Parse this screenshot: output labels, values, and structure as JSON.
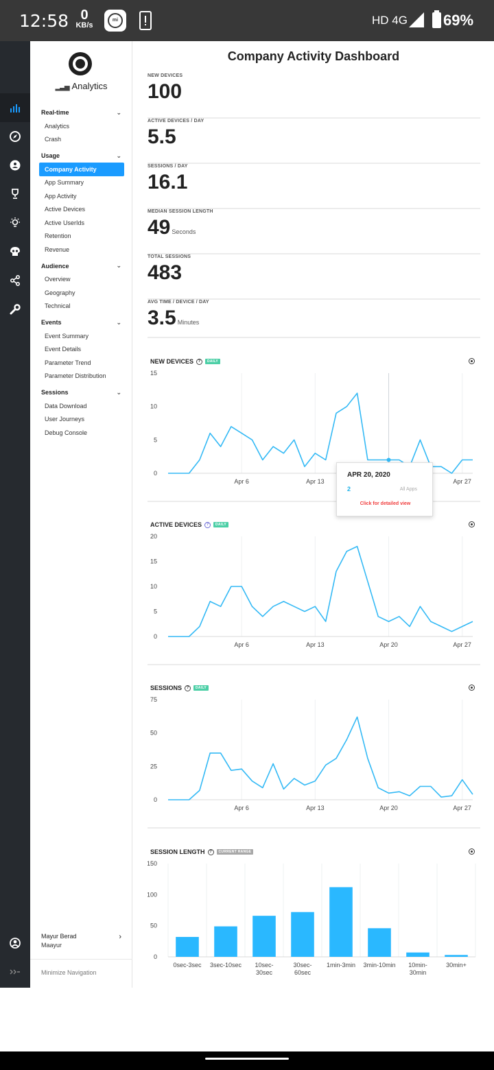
{
  "status_bar": {
    "time": "12:58",
    "net_speed_value": "0",
    "net_speed_unit": "KB/s",
    "mi_label": "mi",
    "network": "HD 4G",
    "battery": "69%"
  },
  "rail_icons": [
    "bar-chart-icon",
    "compass-icon",
    "group-icon",
    "trophy-icon",
    "bulb-icon",
    "skull-icon",
    "share-icon",
    "wrench-icon"
  ],
  "sidebar": {
    "brand": "Analytics",
    "sections": [
      {
        "title": "Real-time",
        "items": [
          {
            "label": "Analytics"
          },
          {
            "label": "Crash"
          }
        ]
      },
      {
        "title": "Usage",
        "items": [
          {
            "label": "Company Activity",
            "active": true
          },
          {
            "label": "App Summary"
          },
          {
            "label": "App Activity"
          },
          {
            "label": "Active Devices"
          },
          {
            "label": "Active UserIds"
          },
          {
            "label": "Retention"
          },
          {
            "label": "Revenue"
          }
        ]
      },
      {
        "title": "Audience",
        "items": [
          {
            "label": "Overview"
          },
          {
            "label": "Geography"
          },
          {
            "label": "Technical"
          }
        ]
      },
      {
        "title": "Events",
        "items": [
          {
            "label": "Event Summary"
          },
          {
            "label": "Event Details"
          },
          {
            "label": "Parameter Trend"
          },
          {
            "label": "Parameter Distribution"
          }
        ]
      },
      {
        "title": "Sessions",
        "items": [
          {
            "label": "Data Download"
          },
          {
            "label": "User Journeys"
          },
          {
            "label": "Debug Console"
          }
        ]
      }
    ],
    "user": {
      "name": "Mayur Berad",
      "org": "Maayur"
    },
    "minimize_label": "Minimize Navigation"
  },
  "main": {
    "title": "Company Activity Dashboard",
    "metrics": [
      {
        "label": "NEW DEVICES",
        "value": "100",
        "unit": ""
      },
      {
        "label": "ACTIVE DEVICES / DAY",
        "value": "5.5",
        "unit": ""
      },
      {
        "label": "SESSIONS / DAY",
        "value": "16.1",
        "unit": ""
      },
      {
        "label": "MEDIAN SESSION LENGTH",
        "value": "49",
        "unit": "Seconds"
      },
      {
        "label": "TOTAL SESSIONS",
        "value": "483",
        "unit": ""
      },
      {
        "label": "AVG TIME / DEVICE / DAY",
        "value": "3.5",
        "unit": "Minutes"
      }
    ],
    "tooltip": {
      "date": "APR 20, 2020",
      "value": "2",
      "series": "All Apps",
      "link": "Click for detailed view"
    }
  },
  "colors": {
    "accent": "#1a9bff",
    "line": "#33b9f5",
    "bar": "#2ab8ff",
    "badge": "#4ccfa6",
    "tooltip_link": "#f03c3c"
  },
  "chart_data": [
    {
      "type": "line",
      "title": "NEW DEVICES",
      "badge": "DAILY",
      "x_ticks": [
        "Apr 6",
        "Apr 13",
        "Apr 20",
        "Apr 27"
      ],
      "y_ticks": [
        "15",
        "10",
        "5",
        "0"
      ],
      "ylim": [
        0,
        15
      ],
      "x": [
        "Mar 30",
        "Mar 31",
        "Apr 1",
        "Apr 2",
        "Apr 3",
        "Apr 4",
        "Apr 5",
        "Apr 6",
        "Apr 7",
        "Apr 8",
        "Apr 9",
        "Apr 10",
        "Apr 11",
        "Apr 12",
        "Apr 13",
        "Apr 14",
        "Apr 15",
        "Apr 16",
        "Apr 17",
        "Apr 18",
        "Apr 19",
        "Apr 20",
        "Apr 21",
        "Apr 22",
        "Apr 23",
        "Apr 24",
        "Apr 25",
        "Apr 26",
        "Apr 27",
        "Apr 28"
      ],
      "values": [
        0,
        0,
        0,
        2,
        6,
        4,
        7,
        6,
        5,
        2,
        4,
        3,
        5,
        1,
        3,
        2,
        9,
        10,
        12,
        2,
        2,
        2,
        2,
        1,
        5,
        1,
        1,
        0,
        2,
        2
      ]
    },
    {
      "type": "line",
      "title": "ACTIVE DEVICES",
      "badge": "DAILY",
      "x_ticks": [
        "Apr 6",
        "Apr 13",
        "Apr 20",
        "Apr 27"
      ],
      "y_ticks": [
        "20",
        "15",
        "10",
        "5",
        "0"
      ],
      "ylim": [
        0,
        20
      ],
      "x": [
        "Mar 30",
        "Mar 31",
        "Apr 1",
        "Apr 2",
        "Apr 3",
        "Apr 4",
        "Apr 5",
        "Apr 6",
        "Apr 7",
        "Apr 8",
        "Apr 9",
        "Apr 10",
        "Apr 11",
        "Apr 12",
        "Apr 13",
        "Apr 14",
        "Apr 15",
        "Apr 16",
        "Apr 17",
        "Apr 18",
        "Apr 19",
        "Apr 20",
        "Apr 21",
        "Apr 22",
        "Apr 23",
        "Apr 24",
        "Apr 25",
        "Apr 26",
        "Apr 27",
        "Apr 28"
      ],
      "values": [
        0,
        0,
        0,
        2,
        7,
        6,
        10,
        10,
        6,
        4,
        6,
        7,
        6,
        5,
        6,
        3,
        13,
        17,
        18,
        11,
        4,
        3,
        4,
        2,
        6,
        3,
        2,
        1,
        2,
        3
      ]
    },
    {
      "type": "line",
      "title": "SESSIONS",
      "badge": "DAILY",
      "x_ticks": [
        "Apr 6",
        "Apr 13",
        "Apr 20",
        "Apr 27"
      ],
      "y_ticks": [
        "75",
        "50",
        "25",
        "0"
      ],
      "ylim": [
        0,
        75
      ],
      "x": [
        "Mar 30",
        "Mar 31",
        "Apr 1",
        "Apr 2",
        "Apr 3",
        "Apr 4",
        "Apr 5",
        "Apr 6",
        "Apr 7",
        "Apr 8",
        "Apr 9",
        "Apr 10",
        "Apr 11",
        "Apr 12",
        "Apr 13",
        "Apr 14",
        "Apr 15",
        "Apr 16",
        "Apr 17",
        "Apr 18",
        "Apr 19",
        "Apr 20",
        "Apr 21",
        "Apr 22",
        "Apr 23",
        "Apr 24",
        "Apr 25",
        "Apr 26",
        "Apr 27",
        "Apr 28"
      ],
      "values": [
        0,
        0,
        0,
        7,
        35,
        35,
        22,
        23,
        14,
        9,
        27,
        8,
        16,
        11,
        14,
        26,
        31,
        45,
        62,
        31,
        9,
        5,
        6,
        3,
        10,
        10,
        2,
        3,
        15,
        4
      ]
    },
    {
      "type": "bar",
      "title": "SESSION LENGTH",
      "badge": "CURRENT RANGE",
      "categories": [
        "0sec-3sec",
        "3sec-10sec",
        "10sec-30sec",
        "30sec-60sec",
        "1min-3min",
        "3min-10min",
        "10min-30min",
        "30min+"
      ],
      "values": [
        32,
        49,
        66,
        72,
        112,
        46,
        7,
        3
      ],
      "y_ticks": [
        "150",
        "100",
        "50",
        "0"
      ],
      "ylim": [
        0,
        150
      ]
    }
  ]
}
